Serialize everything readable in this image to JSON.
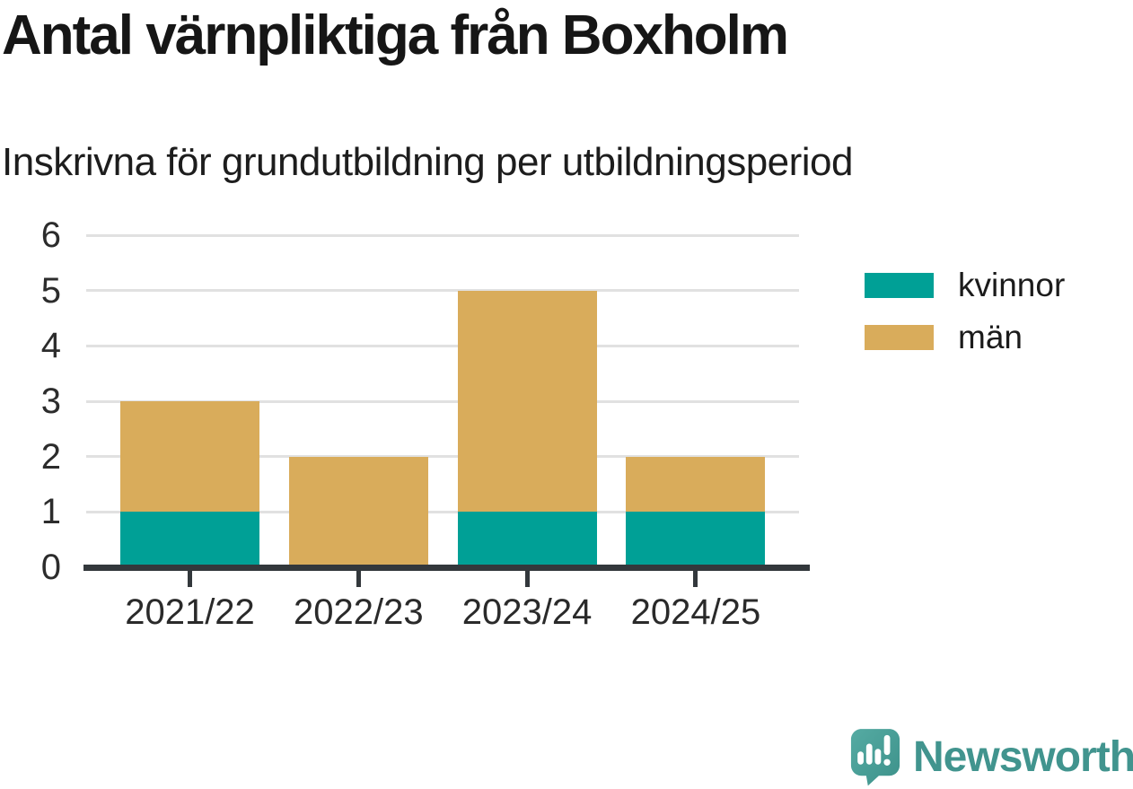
{
  "header": {
    "title": "Antal värnpliktiga från Boxholm",
    "subtitle": "Inskrivna för grundutbildning per utbildningsperiod"
  },
  "chart_data": {
    "type": "bar",
    "stacked": true,
    "title": "Antal värnpliktiga från Boxholm",
    "subtitle": "Inskrivna för grundutbildning per utbildningsperiod",
    "categories": [
      "2021/22",
      "2022/23",
      "2023/24",
      "2024/25"
    ],
    "series": [
      {
        "name": "kvinnor",
        "color": "#00a096",
        "values": [
          1,
          0,
          1,
          1
        ]
      },
      {
        "name": "män",
        "color": "#d9ac5b",
        "values": [
          2,
          2,
          4,
          1
        ]
      }
    ],
    "totals": [
      3,
      2,
      5,
      2
    ],
    "xlabel": "",
    "ylabel": "",
    "ylim": [
      0,
      6
    ],
    "yticks": [
      0,
      1,
      2,
      3,
      4,
      5,
      6
    ],
    "grid": true,
    "legend_position": "right"
  },
  "legend": {
    "items": [
      {
        "label": "kvinnor",
        "color": "#00a096"
      },
      {
        "label": "män",
        "color": "#d9ac5b"
      }
    ]
  },
  "footer": {
    "brand": "Newsworthy",
    "brand_color": "#41948e",
    "logo_icon": "newsworthy-speech-bubble-bar-chart-icon"
  },
  "colors": {
    "kvinnor": "#00a096",
    "man": "#d9ac5b",
    "axis": "#33383c",
    "gridline": "#e1e1e1",
    "text": "#1d1d1d"
  }
}
